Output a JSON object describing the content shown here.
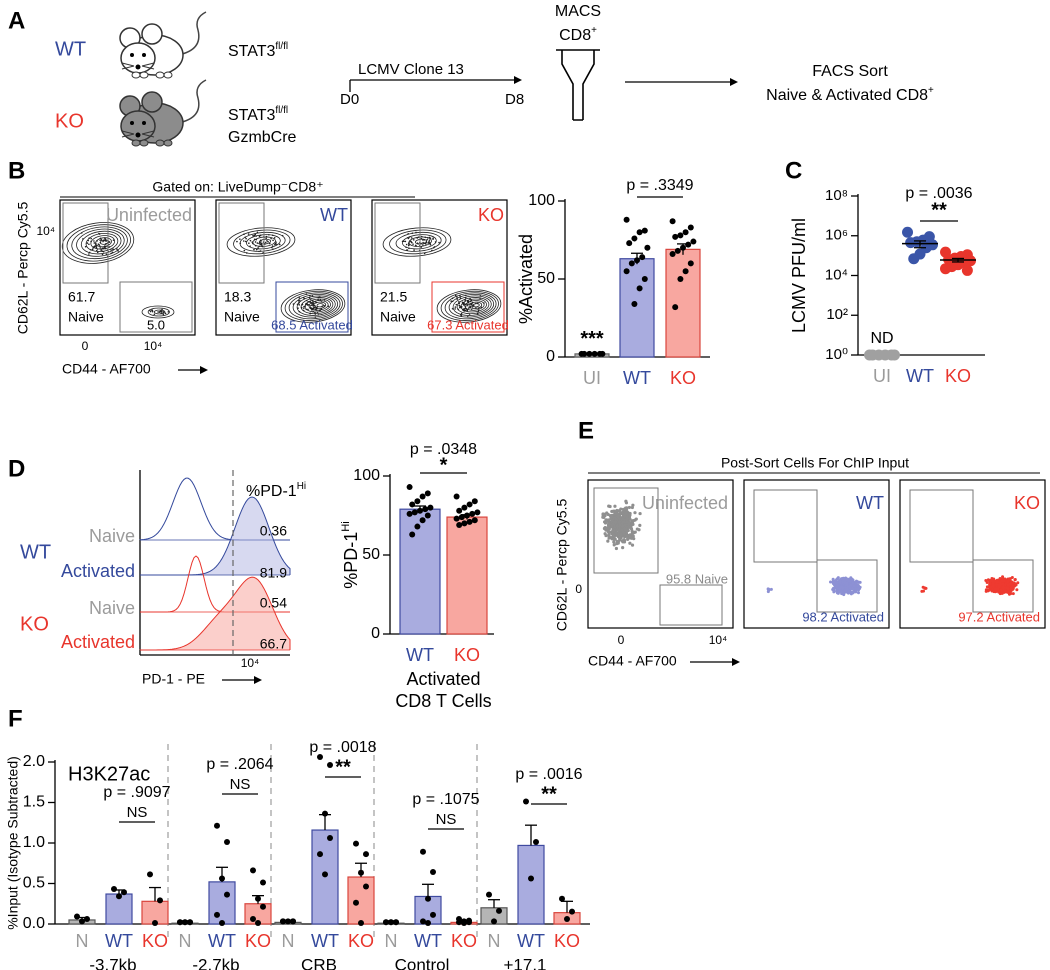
{
  "panel_labels": [
    "A",
    "B",
    "C",
    "D",
    "E",
    "F"
  ],
  "schematic": {
    "wt": {
      "label": "WT",
      "genotype": "STAT3",
      "genotype_sup": "fl/fl"
    },
    "ko": {
      "label": "KO",
      "genotype": "STAT3",
      "genotype_sup": "fl/fl",
      "cre": "GzmbCre"
    },
    "infection": "LCMV Clone 13",
    "start": "D0",
    "end": "D8",
    "macs": "MACS",
    "macs_cells": "CD8",
    "macs_sup": "+",
    "facs": "FACS Sort",
    "facs_cells": "Naive & Activated CD8",
    "facs_sup": "+"
  },
  "flow_b": {
    "header": "Gated on: LiveDump⁻CD8⁺",
    "y_label": "CD62L - Percp Cy5.5",
    "x_label": "CD44 - AF700",
    "y_tick": "10⁴",
    "x_ticks": [
      "0",
      "10⁴"
    ],
    "plots": [
      {
        "title": "Uninfected",
        "naive": "61.7",
        "naive_label": "Naive",
        "activated": "5.0"
      },
      {
        "title": "WT",
        "naive": "18.3",
        "naive_label": "Naive",
        "activated": "68.5 Activated"
      },
      {
        "title": "KO",
        "naive": "21.5",
        "naive_label": "Naive",
        "activated": "67.3 Activated"
      }
    ]
  },
  "histogram_d": {
    "header": "%PD-1",
    "header_sup": "Hi",
    "groups": [
      {
        "name": "WT",
        "rows": [
          {
            "label": "Naive",
            "value": "0.36"
          },
          {
            "label": "Activated",
            "value": "81.9"
          }
        ]
      },
      {
        "name": "KO",
        "rows": [
          {
            "label": "Naive",
            "value": "0.54"
          },
          {
            "label": "Activated",
            "value": "66.7"
          }
        ]
      }
    ],
    "x_label": "PD-1 - PE",
    "x_tick": "10⁴"
  },
  "flow_e": {
    "header": "Post-Sort Cells For ChIP Input",
    "y_label": "CD62L - Percp Cy5.5",
    "x_label": "CD44 - AF700",
    "y_tick": "0",
    "x_ticks": [
      "0",
      "10⁴"
    ],
    "plots": [
      {
        "title": "Uninfected",
        "gate": "95.8 Naive"
      },
      {
        "title": "WT",
        "gate": "98.2 Activated"
      },
      {
        "title": "KO",
        "gate": "97.2 Activated"
      }
    ]
  },
  "chart_data": [
    {
      "type": "bar",
      "y_label": "%Activated",
      "categories": [
        "UI",
        "WT",
        "KO"
      ],
      "colors": [
        "#b3b3b3",
        "#a9acdf",
        "#f8a7a0"
      ],
      "edge_colors": [
        "#666666",
        "#3f4aa0",
        "#d9453d"
      ],
      "category_colors": [
        "#9b9b9b",
        "#34499c",
        "#e8352c"
      ],
      "point_color": "#000000",
      "values": [
        2,
        63,
        69
      ],
      "errors": [
        0.4,
        3.5,
        3.5
      ],
      "points": [
        [
          2,
          2,
          2,
          2,
          2,
          2
        ],
        [
          88,
          81,
          80,
          76,
          73,
          70,
          64,
          62,
          60,
          55,
          50,
          44,
          34
        ],
        [
          87,
          83,
          80,
          78,
          77,
          74,
          72,
          70,
          68,
          66,
          60,
          55,
          50,
          32
        ]
      ],
      "ylim": [
        0,
        100
      ],
      "yticks": [
        0,
        50,
        100
      ],
      "annotations": [
        {
          "text": "***"
        }
      ],
      "comparison": {
        "p": "p = .3349"
      }
    },
    {
      "type": "scatter",
      "y_label": "LCMV PFU/ml",
      "y_scale": "log",
      "categories": [
        "UI",
        "WT",
        "KO"
      ],
      "category_colors": [
        "#9b9b9b",
        "#34499c",
        "#e8352c"
      ],
      "point_colors": [
        "#a0a0a0",
        "#3a55a8",
        "#e8352c"
      ],
      "values": [
        null,
        400000,
        60000
      ],
      "errors": [
        null,
        150000,
        12000
      ],
      "points": [
        [
          1,
          1,
          1,
          1,
          1,
          1
        ],
        [
          1500000,
          900000,
          600000,
          500000,
          450000,
          350000,
          250000,
          120000,
          70000
        ],
        [
          150000,
          110000,
          90000,
          75000,
          65000,
          55000,
          45000,
          35000,
          28000,
          22000,
          18000
        ]
      ],
      "ylim": [
        1,
        100000000
      ],
      "yticks": [
        {
          "value": 1,
          "label": "10⁰"
        },
        {
          "value": 100,
          "label": "10²"
        },
        {
          "value": 10000,
          "label": "10⁴"
        },
        {
          "value": 1000000,
          "label": "10⁶"
        },
        {
          "value": 100000000,
          "label": "10⁸"
        }
      ],
      "nd_label": "ND",
      "comparison": {
        "p": "p = .0036",
        "sig": "**"
      }
    },
    {
      "type": "bar",
      "y_label": "%PD-1",
      "y_label_sup": "Hi",
      "x_label": [
        "Activated",
        "CD8 T Cells"
      ],
      "categories": [
        "WT",
        "KO"
      ],
      "colors": [
        "#a9acdf",
        "#f8a7a0"
      ],
      "edge_colors": [
        "#3f4aa0",
        "#d9453d"
      ],
      "category_colors": [
        "#34499c",
        "#e8352c"
      ],
      "point_color": "#000000",
      "values": [
        79,
        74
      ],
      "errors": [
        2,
        1.5
      ],
      "points": [
        [
          93,
          89,
          87,
          84,
          82,
          80,
          79,
          78,
          77,
          76,
          75,
          72,
          68,
          63
        ],
        [
          87,
          84,
          82,
          80,
          78,
          77,
          76,
          75,
          74,
          73,
          72,
          71,
          70,
          69
        ]
      ],
      "ylim": [
        0,
        100
      ],
      "yticks": [
        0,
        50,
        100
      ],
      "comparison": {
        "p": "p = .0348",
        "sig": "*"
      }
    },
    {
      "type": "grouped_bar",
      "title": "H3K27ac",
      "y_label": "%Input (Isotype Subtracted)",
      "categories": [
        "-3.7kb",
        "-2.7kb",
        "CRB",
        "Control",
        "+17.1"
      ],
      "point_color": "#000000",
      "series": [
        {
          "name": "N",
          "color": "#b5b5b5",
          "edge_color": "#555555",
          "label_color": "#9b9b9b",
          "values": [
            0.05,
            0.01,
            0.02,
            0.01,
            0.2
          ],
          "errors": [
            0.03,
            0.005,
            0.005,
            0.005,
            0.1
          ],
          "points": [
            [
              0.08,
              0.05,
              0.02
            ],
            [
              0.01,
              0.01,
              0.01,
              0.01,
              0.01,
              0.01
            ],
            [
              0.02,
              0.02,
              0.02,
              0.02,
              0.02
            ],
            [
              0.01,
              0.01,
              0.01,
              0.01,
              0.01,
              0.01
            ],
            [
              0.35,
              0.15,
              0.02
            ]
          ]
        },
        {
          "name": "WT",
          "color": "#a9acdf",
          "edge_color": "#3f4aa0",
          "label_color": "#34499c",
          "values": [
            0.37,
            0.52,
            1.16,
            0.34,
            0.97
          ],
          "errors": [
            0.05,
            0.18,
            0.19,
            0.15,
            0.25
          ],
          "points": [
            [
              0.42,
              0.38,
              0.33
            ],
            [
              1.2,
              1.0,
              0.55,
              0.35,
              0.1,
              0.0
            ],
            [
              2.05,
              1.95,
              1.35,
              1.05,
              0.85,
              0.6
            ],
            [
              0.88,
              0.63,
              0.3,
              0.1,
              0.02,
              0.0
            ],
            [
              1.5,
              1.0,
              0.55
            ]
          ]
        },
        {
          "name": "KO",
          "color": "#f8a7a0",
          "edge_color": "#d9453d",
          "label_color": "#e8352c",
          "values": [
            0.28,
            0.25,
            0.58,
            0.02,
            0.14
          ],
          "errors": [
            0.17,
            0.1,
            0.17,
            0.01,
            0.14
          ],
          "points": [
            [
              0.6,
              0.28,
              0.0
            ],
            [
              0.65,
              0.5,
              0.3,
              0.2,
              0.05,
              0.0
            ],
            [
              0.98,
              0.85,
              0.62,
              0.45,
              0.25,
              0.0
            ],
            [
              0.05,
              0.03,
              0.02,
              0.01,
              0.01,
              0.0
            ],
            [
              0.3,
              0.14,
              0.05
            ]
          ]
        }
      ],
      "ylim": [
        0,
        2
      ],
      "yticks": [
        {
          "value": 0,
          "label": "0.0"
        },
        0.5,
        {
          "value": 1,
          "label": "1.0"
        },
        1.5,
        {
          "value": 2,
          "label": "2.0"
        }
      ],
      "comparisons": [
        {
          "p": "p = .9097",
          "sig": "NS"
        },
        {
          "p": "p = .2064",
          "sig": "NS"
        },
        {
          "p": "p = .0018",
          "sig": "**"
        },
        {
          "p": "p = .1075",
          "sig": "NS"
        },
        {
          "p": "p = .0016",
          "sig": "**"
        }
      ]
    }
  ]
}
